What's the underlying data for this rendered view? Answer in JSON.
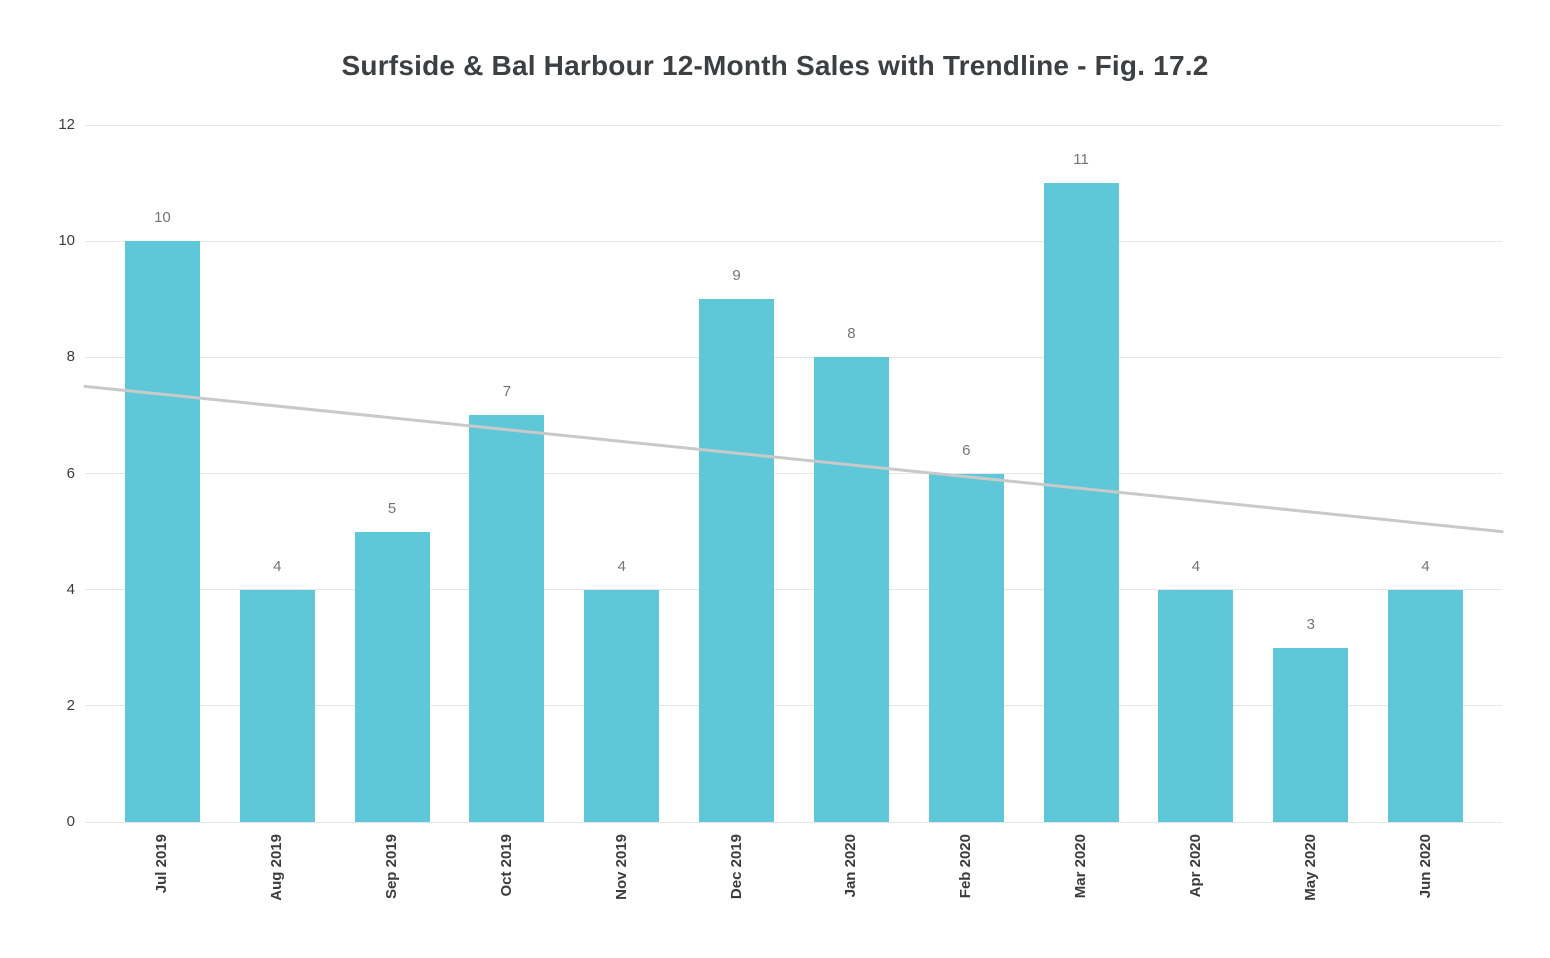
{
  "chart_data": {
    "type": "bar",
    "title": "Surfside & Bal Harbour 12-Month Sales with Trendline - Fig. 17.2",
    "categories": [
      "Jul 2019",
      "Aug 2019",
      "Sep 2019",
      "Oct 2019",
      "Nov 2019",
      "Dec 2019",
      "Jan 2020",
      "Feb 2020",
      "Mar 2020",
      "Apr 2020",
      "May 2020",
      "Jun 2020"
    ],
    "values": [
      10,
      4,
      5,
      7,
      4,
      9,
      8,
      6,
      11,
      4,
      3,
      4
    ],
    "trendline": {
      "start": 7.5,
      "end": 5.0
    },
    "xlabel": "",
    "ylabel": "",
    "ylim": [
      0,
      12
    ],
    "yticks": [
      0,
      2,
      4,
      6,
      8,
      10,
      12
    ],
    "grid": true,
    "legend_position": "none",
    "colors": {
      "bar": "#5ec8d8",
      "gridline": "#e6e6e6",
      "trendline": "#c9c9c9",
      "value_label": "#757575",
      "axis_label": "#3c3c3c",
      "title": "#3c4043",
      "background": "#ffffff"
    }
  }
}
